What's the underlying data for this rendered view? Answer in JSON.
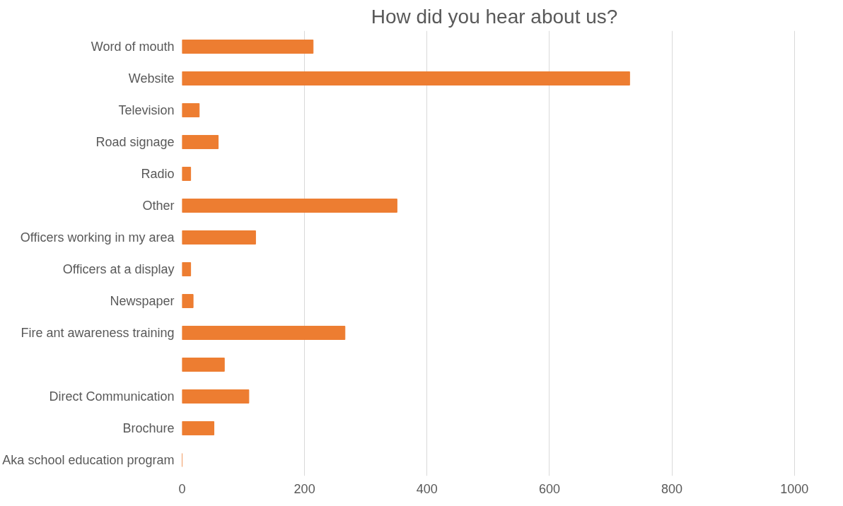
{
  "chart_data": {
    "type": "bar",
    "orientation": "horizontal",
    "title": "How did you hear about us?",
    "categories": [
      "Word of mouth",
      "Website",
      "Television",
      "Road signage",
      "Radio",
      "Other",
      "Officers working in my area",
      "Officers at a display",
      "Newspaper",
      "Fire ant awareness training",
      null,
      "Direct Communication",
      "Brochure",
      "Aka school education program"
    ],
    "values": [
      214,
      731,
      28,
      59,
      14,
      351,
      120,
      14,
      18,
      266,
      69,
      109,
      52,
      0
    ],
    "color": "#ed7d31",
    "xlim": [
      0,
      1000
    ],
    "xticks": [
      0,
      200,
      400,
      600,
      800,
      1000
    ],
    "grid": "x"
  }
}
